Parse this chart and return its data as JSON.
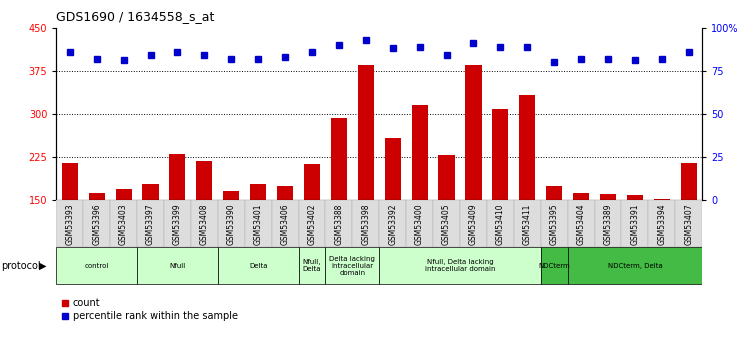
{
  "title": "GDS1690 / 1634558_s_at",
  "samples": [
    "GSM53393",
    "GSM53396",
    "GSM53403",
    "GSM53397",
    "GSM53399",
    "GSM53408",
    "GSM53390",
    "GSM53401",
    "GSM53406",
    "GSM53402",
    "GSM53388",
    "GSM53398",
    "GSM53392",
    "GSM53400",
    "GSM53405",
    "GSM53409",
    "GSM53410",
    "GSM53411",
    "GSM53395",
    "GSM53404",
    "GSM53389",
    "GSM53391",
    "GSM53394",
    "GSM53407"
  ],
  "counts": [
    215,
    163,
    170,
    178,
    230,
    218,
    165,
    178,
    175,
    213,
    292,
    385,
    258,
    315,
    228,
    385,
    308,
    333,
    175,
    163,
    160,
    158,
    152,
    215
  ],
  "percentiles": [
    86,
    82,
    81,
    84,
    86,
    84,
    82,
    82,
    83,
    86,
    90,
    93,
    88,
    89,
    84,
    91,
    89,
    89,
    80,
    82,
    82,
    81,
    82,
    86
  ],
  "groups": [
    {
      "label": "control",
      "start": 0,
      "end": 3,
      "color": "#ccffcc"
    },
    {
      "label": "Nfull",
      "start": 3,
      "end": 6,
      "color": "#ccffcc"
    },
    {
      "label": "Delta",
      "start": 6,
      "end": 9,
      "color": "#ccffcc"
    },
    {
      "label": "Nfull,\nDelta",
      "start": 9,
      "end": 10,
      "color": "#ccffcc"
    },
    {
      "label": "Delta lacking\nintracellular\ndomain",
      "start": 10,
      "end": 12,
      "color": "#ccffcc"
    },
    {
      "label": "Nfull, Delta lacking\nintracellular domain",
      "start": 12,
      "end": 18,
      "color": "#ccffcc"
    },
    {
      "label": "NDCterm",
      "start": 18,
      "end": 19,
      "color": "#44bb44"
    },
    {
      "label": "NDCterm, Delta",
      "start": 19,
      "end": 24,
      "color": "#44bb44"
    }
  ],
  "ymin": 150,
  "ymax": 450,
  "yticks": [
    150,
    225,
    300,
    375,
    450
  ],
  "y2ticks": [
    0,
    25,
    50,
    75,
    100
  ],
  "bar_color": "#cc0000",
  "dot_color": "#0000cc"
}
